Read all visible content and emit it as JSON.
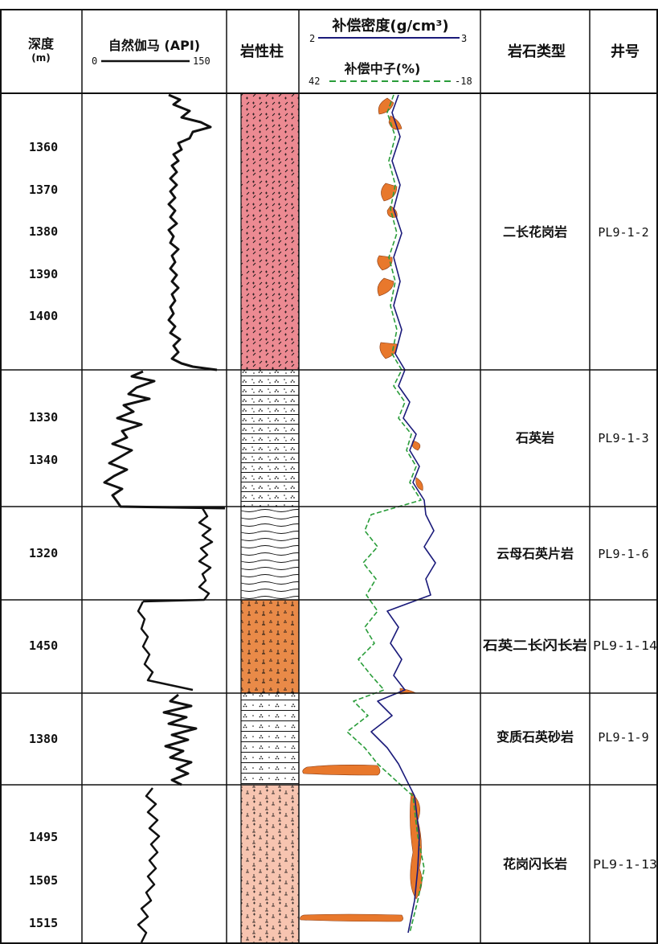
{
  "header": {
    "depth": "深度",
    "depth_unit": "(m)",
    "gr_title": "自然伽马 (API)",
    "gr_min": "0",
    "gr_max": "150",
    "lith_column": "岩性柱",
    "density_title": "补偿密度(g/cm³)",
    "density_min": "2",
    "density_max": "3",
    "neutron_title": "补偿中子(%)",
    "neutron_min": "42",
    "neutron_max": "-18",
    "rock_type": "岩石类型",
    "well_no": "井号"
  },
  "colors": {
    "grid": "#111111",
    "gr_curve": "#111111",
    "density_curve": "#1a1a7a",
    "neutron_curve": "#2a9d3a",
    "crossover_fill": "#e8782c",
    "pink_lith": "#ec8a92",
    "orange_lith": "#e98a48",
    "lightpink_lith": "#f7c4b0"
  },
  "sections": [
    {
      "depth_labels": [
        "1360",
        "1370",
        "1380",
        "1390",
        "1400"
      ],
      "rock_type": "二长花岗岩",
      "well": "PL9-1-2",
      "lithology": "pink",
      "lithology_icon": "plus-slash-pattern-icon"
    },
    {
      "depth_labels": [
        "1330",
        "1340"
      ],
      "rock_type": "石英岩",
      "well": "PL9-1-3",
      "lithology": "white-dots",
      "lithology_icon": "dotted-bed-pattern-icon"
    },
    {
      "depth_labels": [
        "1320"
      ],
      "rock_type": "云母石英片岩",
      "well": "PL9-1-6",
      "lithology": "white-waves",
      "lithology_icon": "wavy-schist-pattern-icon"
    },
    {
      "depth_labels": [
        "1450"
      ],
      "rock_type": "石英二长闪长岩",
      "well": "PL9-1-14",
      "lithology": "orange",
      "lithology_icon": "perpendicular-dot-pattern-icon"
    },
    {
      "depth_labels": [
        "1380"
      ],
      "rock_type": "变质石英砂岩",
      "well": "PL9-1-9",
      "lithology": "white-sand",
      "lithology_icon": "sandstone-pattern-icon"
    },
    {
      "depth_labels": [
        "1495",
        "1505",
        "1515"
      ],
      "rock_type": "花岗闪长岩",
      "well": "PL9-1-13",
      "lithology": "lightpink",
      "lithology_icon": "granodiorite-pattern-icon"
    }
  ]
}
